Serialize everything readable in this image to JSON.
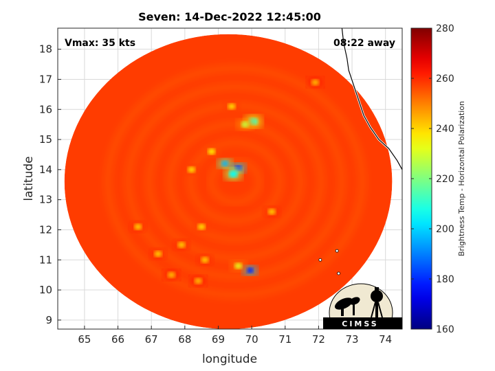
{
  "chart_data": {
    "type": "heatmap",
    "title": "Seven: 14-Dec-2022 12:45:00",
    "xlabel": "longitude",
    "ylabel": "latitude",
    "xlim": [
      64.2,
      74.5
    ],
    "ylim": [
      8.7,
      18.7
    ],
    "xticks": [
      65,
      66,
      67,
      68,
      69,
      70,
      71,
      72,
      73,
      74
    ],
    "yticks": [
      9,
      10,
      11,
      12,
      13,
      14,
      15,
      16,
      17,
      18
    ],
    "grid": true,
    "annotations": {
      "vmax": "Vmax: 35 kts",
      "time_away": "08:22 away"
    },
    "colorbar": {
      "label": "Brightness Temp - Horizontal Polarization",
      "min": 160,
      "max": 280,
      "ticks": [
        160,
        180,
        200,
        220,
        240,
        260,
        280
      ],
      "colormap": "jet"
    },
    "swath": {
      "center_lon": 69.3,
      "center_lat": 13.6,
      "radius_lon": 4.9,
      "radius_lat": 4.9,
      "background_temp": 258
    },
    "features": [
      {
        "lon": 69.2,
        "lat": 14.2,
        "temp": 196
      },
      {
        "lon": 69.6,
        "lat": 14.05,
        "temp": 180
      },
      {
        "lon": 69.45,
        "lat": 13.85,
        "temp": 205
      },
      {
        "lon": 70.05,
        "lat": 15.6,
        "temp": 212
      },
      {
        "lon": 69.8,
        "lat": 15.5,
        "temp": 228
      },
      {
        "lon": 69.95,
        "lat": 10.65,
        "temp": 178
      },
      {
        "lon": 69.6,
        "lat": 10.8,
        "temp": 232
      },
      {
        "lon": 68.2,
        "lat": 14.0,
        "temp": 238
      },
      {
        "lon": 68.8,
        "lat": 14.6,
        "temp": 236
      },
      {
        "lon": 70.6,
        "lat": 12.6,
        "temp": 240
      },
      {
        "lon": 68.5,
        "lat": 12.1,
        "temp": 238
      },
      {
        "lon": 67.9,
        "lat": 11.5,
        "temp": 240
      },
      {
        "lon": 67.2,
        "lat": 11.2,
        "temp": 240
      },
      {
        "lon": 69.4,
        "lat": 16.1,
        "temp": 238
      },
      {
        "lon": 68.6,
        "lat": 11.0,
        "temp": 240
      },
      {
        "lon": 68.4,
        "lat": 10.3,
        "temp": 242
      },
      {
        "lon": 66.6,
        "lat": 12.1,
        "temp": 240
      },
      {
        "lon": 71.9,
        "lat": 16.9,
        "temp": 242
      },
      {
        "lon": 67.6,
        "lat": 10.5,
        "temp": 242
      }
    ],
    "coastline": [
      [
        72.7,
        18.7
      ],
      [
        72.75,
        18.2
      ],
      [
        72.85,
        17.7
      ],
      [
        72.9,
        17.3
      ],
      [
        73.05,
        16.8
      ],
      [
        73.2,
        16.3
      ],
      [
        73.35,
        15.8
      ],
      [
        73.55,
        15.4
      ],
      [
        73.8,
        15.0
      ],
      [
        74.1,
        14.7
      ],
      [
        74.35,
        14.3
      ],
      [
        74.5,
        14.0
      ]
    ],
    "islands": [
      [
        72.05,
        11.0
      ],
      [
        72.55,
        11.3
      ],
      [
        72.6,
        10.55
      ]
    ]
  },
  "logo": {
    "text": "CIMSS"
  }
}
